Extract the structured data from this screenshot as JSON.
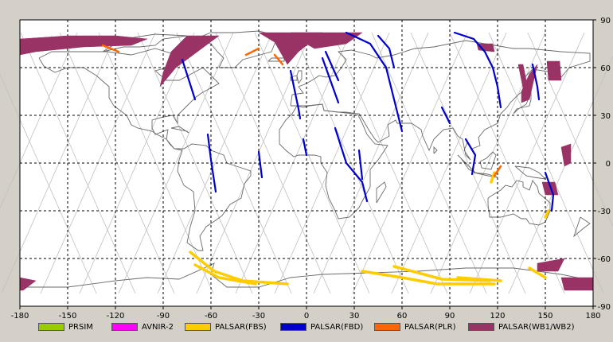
{
  "map": {
    "lon_ticks": [
      -180,
      -150,
      -120,
      -90,
      -60,
      -30,
      0,
      30,
      60,
      90,
      120,
      150,
      180
    ],
    "lat_ticks": [
      90,
      60,
      30,
      0,
      -30,
      -60,
      -90
    ],
    "lon_labels": [
      "-180",
      "-150",
      "-120",
      "-90",
      "-60",
      "-30",
      "0",
      "30",
      "60",
      "90",
      "120",
      "150",
      "180"
    ],
    "lat_labels": [
      "90",
      "60",
      "30",
      "0",
      "-30",
      "-60",
      "-90"
    ],
    "colors": {
      "background": "#ffffff",
      "frame": "#000000",
      "grid": "#000000",
      "orbit": "#c0c0c0",
      "coast": "#6a6a6a"
    }
  },
  "legend": [
    {
      "label": "PRSIM",
      "color": "#99cc00"
    },
    {
      "label": "AVNIR-2",
      "color": "#ff00ff"
    },
    {
      "label": "PALSAR(FBS)",
      "color": "#ffcc00"
    },
    {
      "label": "PALSAR(FBD)",
      "color": "#0000cc"
    },
    {
      "label": "PALSAR(PLR)",
      "color": "#ff6600"
    },
    {
      "label": "PALSAR(WB1/WB2)",
      "color": "#993366"
    }
  ],
  "swaths": {
    "wb": [
      [
        [
          -180,
          78
        ],
        [
          -150,
          80
        ],
        [
          -120,
          80
        ],
        [
          -100,
          78
        ],
        [
          -110,
          74
        ],
        [
          -140,
          73
        ],
        [
          -170,
          70
        ],
        [
          -180,
          68
        ]
      ],
      [
        [
          -75,
          80
        ],
        [
          -55,
          80
        ],
        [
          -82,
          60
        ],
        [
          -92,
          48
        ],
        [
          -90,
          57
        ],
        [
          -85,
          70
        ]
      ],
      [
        [
          -30,
          82
        ],
        [
          10,
          82
        ],
        [
          -5,
          70
        ],
        [
          -12,
          62
        ],
        [
          -20,
          76
        ]
      ],
      [
        [
          -10,
          82
        ],
        [
          35,
          82
        ],
        [
          25,
          75
        ],
        [
          5,
          72
        ],
        [
          -2,
          76
        ]
      ],
      [
        [
          140,
          56
        ],
        [
          145,
          62
        ],
        [
          140,
          40
        ],
        [
          135,
          38
        ],
        [
          135,
          45
        ]
      ],
      [
        [
          107,
          75
        ],
        [
          117,
          75
        ],
        [
          118,
          70
        ],
        [
          108,
          71
        ]
      ],
      [
        [
          151,
          64
        ],
        [
          159,
          64
        ],
        [
          160,
          52
        ],
        [
          152,
          52
        ]
      ],
      [
        [
          133,
          62
        ],
        [
          136,
          62
        ],
        [
          140,
          42
        ],
        [
          137,
          42
        ]
      ],
      [
        [
          160,
          10
        ],
        [
          166,
          12
        ],
        [
          166,
          0
        ],
        [
          162,
          -2
        ]
      ],
      [
        [
          148,
          -12
        ],
        [
          156,
          -12
        ],
        [
          158,
          -20
        ],
        [
          150,
          -20
        ]
      ],
      [
        [
          145,
          -63
        ],
        [
          162,
          -60
        ],
        [
          158,
          -68
        ],
        [
          145,
          -68
        ]
      ],
      [
        [
          160,
          -72
        ],
        [
          180,
          -72
        ],
        [
          180,
          -80
        ],
        [
          162,
          -80
        ]
      ],
      [
        [
          -180,
          -72
        ],
        [
          -170,
          -74
        ],
        [
          -178,
          -80
        ],
        [
          -180,
          -80
        ]
      ]
    ],
    "fbd": [
      [
        [
          -78,
          65
        ],
        [
          -70,
          40
        ]
      ],
      [
        [
          -62,
          18
        ],
        [
          -60,
          2
        ],
        [
          -57,
          -18
        ]
      ],
      [
        [
          -30,
          7
        ],
        [
          -28,
          -9
        ]
      ],
      [
        [
          -10,
          58
        ],
        [
          -5,
          34
        ],
        [
          -4,
          28
        ]
      ],
      [
        [
          -2,
          15
        ],
        [
          0,
          5
        ]
      ],
      [
        [
          10,
          66
        ],
        [
          15,
          52
        ],
        [
          20,
          38
        ]
      ],
      [
        [
          12,
          70
        ],
        [
          20,
          52
        ]
      ],
      [
        [
          18,
          22
        ],
        [
          25,
          0
        ],
        [
          35,
          -12
        ],
        [
          38,
          -24
        ]
      ],
      [
        [
          33,
          8
        ],
        [
          35,
          -10
        ]
      ],
      [
        [
          25,
          82
        ],
        [
          40,
          75
        ],
        [
          50,
          60
        ],
        [
          55,
          40
        ],
        [
          60,
          20
        ]
      ],
      [
        [
          45,
          80
        ],
        [
          52,
          72
        ],
        [
          55,
          60
        ]
      ],
      [
        [
          93,
          82
        ],
        [
          105,
          78
        ],
        [
          112,
          70
        ],
        [
          117,
          60
        ],
        [
          120,
          48
        ],
        [
          122,
          35
        ]
      ],
      [
        [
          85,
          35
        ],
        [
          90,
          25
        ]
      ],
      [
        [
          100,
          15
        ],
        [
          106,
          5
        ],
        [
          104,
          -7
        ]
      ],
      [
        [
          142,
          62
        ],
        [
          145,
          48
        ],
        [
          146,
          40
        ]
      ],
      [
        [
          150,
          -6
        ],
        [
          155,
          -20
        ],
        [
          154,
          -30
        ]
      ]
    ],
    "fbs": [
      [
        [
          -73,
          -56
        ],
        [
          -58,
          -68
        ],
        [
          -40,
          -74
        ],
        [
          -12,
          -76
        ]
      ],
      [
        [
          -70,
          -64
        ],
        [
          -55,
          -72
        ],
        [
          -32,
          -76
        ]
      ],
      [
        [
          35,
          -68
        ],
        [
          60,
          -72
        ],
        [
          82,
          -76
        ],
        [
          118,
          -76
        ]
      ],
      [
        [
          55,
          -65
        ],
        [
          85,
          -73
        ],
        [
          115,
          -74
        ]
      ],
      [
        [
          95,
          -72
        ],
        [
          122,
          -74
        ]
      ],
      [
        [
          140,
          -66
        ],
        [
          150,
          -72
        ]
      ],
      [
        [
          118,
          -6
        ],
        [
          116,
          -12
        ]
      ],
      [
        [
          152,
          -30
        ],
        [
          150,
          -34
        ]
      ]
    ],
    "plr": [
      [
        [
          -128,
          74
        ],
        [
          -118,
          70
        ]
      ],
      [
        [
          -38,
          68
        ],
        [
          -30,
          72
        ]
      ],
      [
        [
          -20,
          68
        ],
        [
          -15,
          62
        ]
      ],
      [
        [
          122,
          -2
        ],
        [
          118,
          -8
        ]
      ]
    ]
  }
}
